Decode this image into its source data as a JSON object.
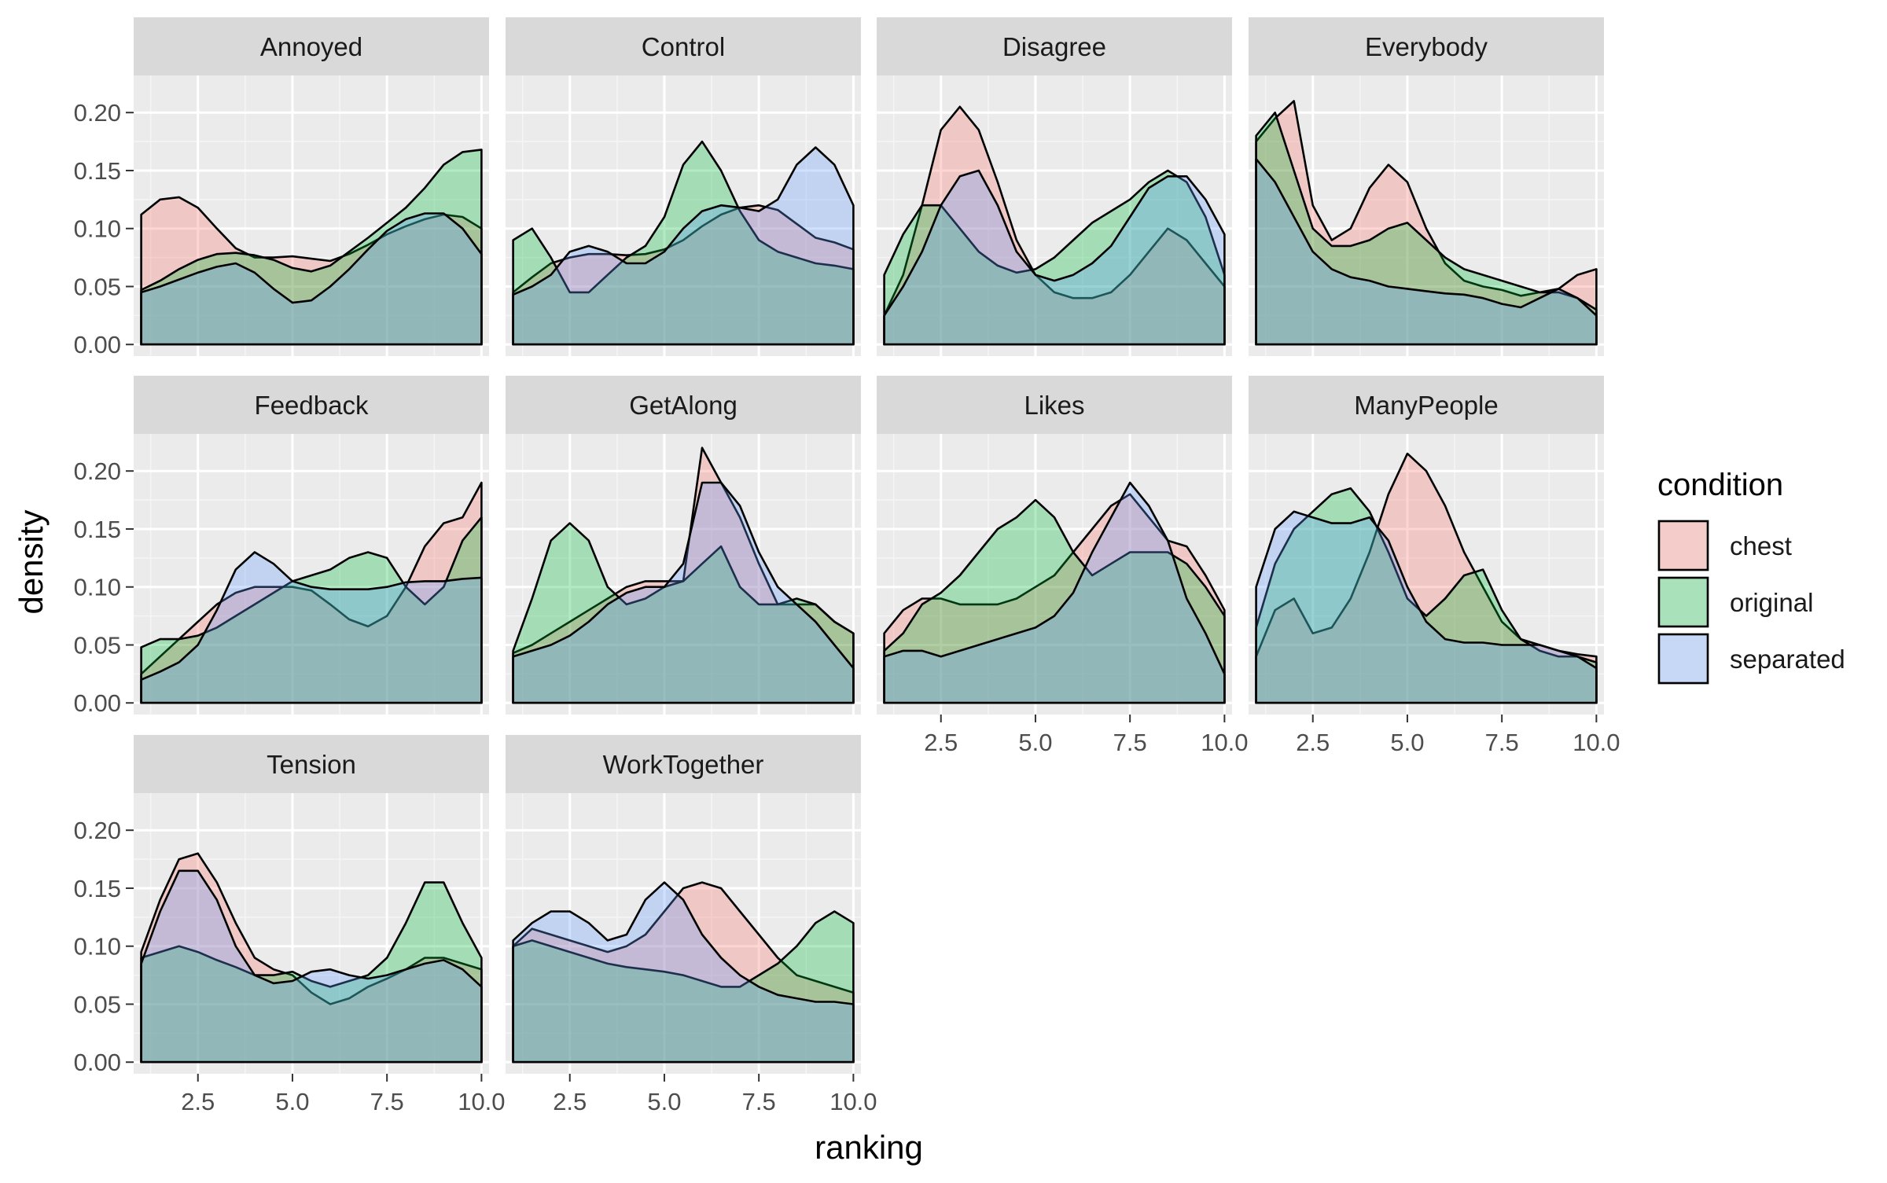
{
  "chart_data": {
    "type": "area",
    "subtype": "faceted density plot",
    "xlabel": "ranking",
    "ylabel": "density",
    "xlim": [
      1,
      10
    ],
    "ylim": [
      0,
      0.22
    ],
    "x_ticks": [
      "2.5",
      "5.0",
      "7.5",
      "10.0"
    ],
    "x_tick_values": [
      2.5,
      5.0,
      7.5,
      10.0
    ],
    "y_ticks": [
      "0.00",
      "0.05",
      "0.10",
      "0.15",
      "0.20"
    ],
    "y_tick_values": [
      0,
      0.05,
      0.1,
      0.15,
      0.2
    ],
    "grid": true,
    "legend": {
      "title": "condition",
      "position": "right",
      "entries": [
        "chest",
        "original",
        "separated"
      ]
    },
    "colors": {
      "chest": "#f8766d",
      "original": "#00ba38",
      "separated": "#619cff",
      "panel_background": "#ebebeb",
      "strip_background": "#d9d9d9"
    },
    "x": [
      1.0,
      1.5,
      2.0,
      2.5,
      3.0,
      3.5,
      4.0,
      4.5,
      5.0,
      5.5,
      6.0,
      6.5,
      7.0,
      7.5,
      8.0,
      8.5,
      9.0,
      9.5,
      10.0
    ],
    "facets": [
      {
        "name": "Annoyed",
        "series": [
          {
            "name": "chest",
            "values": [
              0.112,
              0.125,
              0.127,
              0.118,
              0.1,
              0.083,
              0.075,
              0.075,
              0.076,
              0.074,
              0.072,
              0.078,
              0.086,
              0.095,
              0.102,
              0.108,
              0.112,
              0.11,
              0.1
            ]
          },
          {
            "name": "original",
            "values": [
              0.047,
              0.055,
              0.065,
              0.073,
              0.078,
              0.079,
              0.077,
              0.073,
              0.066,
              0.063,
              0.068,
              0.08,
              0.092,
              0.105,
              0.118,
              0.135,
              0.155,
              0.166,
              0.168
            ]
          },
          {
            "name": "separated",
            "values": [
              0.045,
              0.05,
              0.056,
              0.062,
              0.067,
              0.07,
              0.062,
              0.048,
              0.036,
              0.038,
              0.05,
              0.065,
              0.082,
              0.098,
              0.108,
              0.113,
              0.113,
              0.1,
              0.078
            ]
          }
        ]
      },
      {
        "name": "Control",
        "series": [
          {
            "name": "chest",
            "values": [
              0.045,
              0.058,
              0.07,
              0.075,
              0.078,
              0.078,
              0.077,
              0.078,
              0.082,
              0.09,
              0.102,
              0.112,
              0.118,
              0.12,
              0.116,
              0.104,
              0.092,
              0.088,
              0.082
            ]
          },
          {
            "name": "original",
            "values": [
              0.09,
              0.1,
              0.075,
              0.045,
              0.045,
              0.06,
              0.075,
              0.085,
              0.11,
              0.155,
              0.175,
              0.15,
              0.115,
              0.09,
              0.08,
              0.075,
              0.07,
              0.068,
              0.065
            ]
          },
          {
            "name": "separated",
            "values": [
              0.043,
              0.05,
              0.06,
              0.08,
              0.085,
              0.08,
              0.07,
              0.07,
              0.08,
              0.1,
              0.115,
              0.12,
              0.118,
              0.115,
              0.125,
              0.155,
              0.17,
              0.155,
              0.12
            ]
          }
        ]
      },
      {
        "name": "Disagree",
        "series": [
          {
            "name": "chest",
            "values": [
              0.025,
              0.06,
              0.12,
              0.185,
              0.205,
              0.185,
              0.14,
              0.09,
              0.06,
              0.045,
              0.04,
              0.04,
              0.045,
              0.06,
              0.08,
              0.1,
              0.09,
              0.07,
              0.05
            ]
          },
          {
            "name": "original",
            "values": [
              0.06,
              0.095,
              0.12,
              0.12,
              0.1,
              0.08,
              0.068,
              0.062,
              0.065,
              0.075,
              0.09,
              0.105,
              0.115,
              0.125,
              0.14,
              0.15,
              0.14,
              0.11,
              0.06
            ]
          },
          {
            "name": "separated",
            "values": [
              0.025,
              0.05,
              0.08,
              0.12,
              0.145,
              0.15,
              0.12,
              0.08,
              0.06,
              0.055,
              0.06,
              0.07,
              0.085,
              0.11,
              0.135,
              0.145,
              0.145,
              0.125,
              0.095
            ]
          }
        ]
      },
      {
        "name": "Everybody",
        "series": [
          {
            "name": "chest",
            "values": [
              0.175,
              0.195,
              0.21,
              0.12,
              0.09,
              0.1,
              0.135,
              0.155,
              0.14,
              0.1,
              0.07,
              0.055,
              0.05,
              0.047,
              0.042,
              0.045,
              0.048,
              0.06,
              0.065
            ]
          },
          {
            "name": "original",
            "values": [
              0.18,
              0.2,
              0.15,
              0.1,
              0.085,
              0.085,
              0.09,
              0.1,
              0.105,
              0.09,
              0.075,
              0.065,
              0.06,
              0.055,
              0.05,
              0.045,
              0.045,
              0.04,
              0.03
            ]
          },
          {
            "name": "separated",
            "values": [
              0.16,
              0.14,
              0.11,
              0.08,
              0.065,
              0.058,
              0.055,
              0.05,
              0.048,
              0.046,
              0.044,
              0.043,
              0.04,
              0.035,
              0.032,
              0.04,
              0.048,
              0.04,
              0.025
            ]
          }
        ]
      },
      {
        "name": "Feedback",
        "series": [
          {
            "name": "chest",
            "values": [
              0.025,
              0.04,
              0.055,
              0.07,
              0.085,
              0.095,
              0.1,
              0.1,
              0.1,
              0.097,
              0.085,
              0.072,
              0.066,
              0.075,
              0.1,
              0.135,
              0.155,
              0.16,
              0.19
            ]
          },
          {
            "name": "original",
            "values": [
              0.048,
              0.055,
              0.055,
              0.058,
              0.065,
              0.075,
              0.085,
              0.095,
              0.105,
              0.11,
              0.115,
              0.125,
              0.13,
              0.125,
              0.1,
              0.085,
              0.1,
              0.14,
              0.16
            ]
          },
          {
            "name": "separated",
            "values": [
              0.02,
              0.027,
              0.035,
              0.05,
              0.08,
              0.115,
              0.13,
              0.12,
              0.105,
              0.1,
              0.098,
              0.098,
              0.098,
              0.1,
              0.104,
              0.105,
              0.105,
              0.107,
              0.108
            ]
          }
        ]
      },
      {
        "name": "GetAlong",
        "series": [
          {
            "name": "chest",
            "values": [
              0.043,
              0.05,
              0.06,
              0.07,
              0.08,
              0.09,
              0.1,
              0.105,
              0.105,
              0.105,
              0.22,
              0.19,
              0.16,
              0.12,
              0.085,
              0.085,
              0.085,
              0.07,
              0.06
            ]
          },
          {
            "name": "original",
            "values": [
              0.045,
              0.09,
              0.14,
              0.155,
              0.14,
              0.1,
              0.085,
              0.09,
              0.1,
              0.105,
              0.12,
              0.135,
              0.1,
              0.085,
              0.085,
              0.09,
              0.085,
              0.07,
              0.06
            ]
          },
          {
            "name": "separated",
            "values": [
              0.04,
              0.045,
              0.05,
              0.058,
              0.07,
              0.085,
              0.095,
              0.1,
              0.1,
              0.12,
              0.19,
              0.19,
              0.17,
              0.13,
              0.1,
              0.085,
              0.07,
              0.05,
              0.03
            ]
          }
        ]
      },
      {
        "name": "Likes",
        "series": [
          {
            "name": "chest",
            "values": [
              0.06,
              0.08,
              0.09,
              0.09,
              0.085,
              0.085,
              0.085,
              0.09,
              0.1,
              0.11,
              0.13,
              0.15,
              0.17,
              0.18,
              0.16,
              0.14,
              0.135,
              0.11,
              0.08
            ]
          },
          {
            "name": "original",
            "values": [
              0.045,
              0.06,
              0.085,
              0.095,
              0.11,
              0.13,
              0.15,
              0.16,
              0.175,
              0.16,
              0.13,
              0.11,
              0.12,
              0.13,
              0.13,
              0.13,
              0.12,
              0.1,
              0.075
            ]
          },
          {
            "name": "separated",
            "values": [
              0.04,
              0.045,
              0.045,
              0.04,
              0.045,
              0.05,
              0.055,
              0.06,
              0.065,
              0.075,
              0.095,
              0.13,
              0.16,
              0.19,
              0.17,
              0.14,
              0.09,
              0.06,
              0.025
            ]
          }
        ]
      },
      {
        "name": "ManyPeople",
        "series": [
          {
            "name": "chest",
            "values": [
              0.04,
              0.08,
              0.09,
              0.06,
              0.065,
              0.09,
              0.13,
              0.18,
              0.215,
              0.2,
              0.17,
              0.13,
              0.1,
              0.07,
              0.055,
              0.05,
              0.045,
              0.042,
              0.04
            ]
          },
          {
            "name": "original",
            "values": [
              0.065,
              0.12,
              0.15,
              0.165,
              0.18,
              0.185,
              0.165,
              0.13,
              0.09,
              0.075,
              0.09,
              0.11,
              0.115,
              0.08,
              0.055,
              0.045,
              0.04,
              0.04,
              0.035
            ]
          },
          {
            "name": "separated",
            "values": [
              0.1,
              0.15,
              0.165,
              0.16,
              0.155,
              0.155,
              0.16,
              0.14,
              0.1,
              0.07,
              0.055,
              0.052,
              0.052,
              0.05,
              0.05,
              0.05,
              0.045,
              0.04,
              0.03
            ]
          }
        ]
      },
      {
        "name": "Tension",
        "series": [
          {
            "name": "chest",
            "values": [
              0.095,
              0.14,
              0.175,
              0.18,
              0.155,
              0.12,
              0.09,
              0.08,
              0.075,
              0.06,
              0.05,
              0.055,
              0.065,
              0.072,
              0.08,
              0.09,
              0.09,
              0.085,
              0.08
            ]
          },
          {
            "name": "original",
            "values": [
              0.09,
              0.095,
              0.1,
              0.095,
              0.088,
              0.082,
              0.075,
              0.075,
              0.078,
              0.07,
              0.065,
              0.07,
              0.075,
              0.09,
              0.12,
              0.155,
              0.155,
              0.12,
              0.09
            ]
          },
          {
            "name": "separated",
            "values": [
              0.085,
              0.13,
              0.165,
              0.165,
              0.14,
              0.1,
              0.075,
              0.068,
              0.07,
              0.078,
              0.08,
              0.075,
              0.072,
              0.075,
              0.08,
              0.085,
              0.088,
              0.08,
              0.065
            ]
          }
        ]
      },
      {
        "name": "WorkTogether",
        "series": [
          {
            "name": "chest",
            "values": [
              0.1,
              0.115,
              0.11,
              0.105,
              0.1,
              0.095,
              0.1,
              0.11,
              0.13,
              0.15,
              0.155,
              0.15,
              0.13,
              0.11,
              0.09,
              0.075,
              0.07,
              0.065,
              0.06
            ]
          },
          {
            "name": "original",
            "values": [
              0.1,
              0.105,
              0.1,
              0.095,
              0.09,
              0.085,
              0.082,
              0.08,
              0.078,
              0.075,
              0.07,
              0.065,
              0.065,
              0.075,
              0.085,
              0.1,
              0.12,
              0.13,
              0.12
            ]
          },
          {
            "name": "separated",
            "values": [
              0.105,
              0.12,
              0.13,
              0.13,
              0.12,
              0.105,
              0.11,
              0.14,
              0.155,
              0.14,
              0.11,
              0.09,
              0.075,
              0.065,
              0.058,
              0.055,
              0.052,
              0.052,
              0.05
            ]
          }
        ]
      }
    ]
  }
}
